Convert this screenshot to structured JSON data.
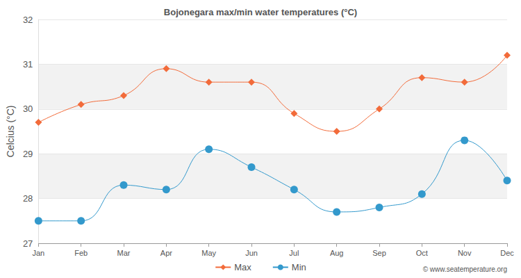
{
  "chart_data": {
    "type": "line",
    "title": "Bojonegara max/min water temperatures (°C)",
    "y_label": "Celcius (°C)",
    "annotation": "© www.seatemperature.org",
    "categories": [
      "Jan",
      "Feb",
      "Mar",
      "Apr",
      "May",
      "Jun",
      "Jul",
      "Aug",
      "Sep",
      "Oct",
      "Nov",
      "Dec"
    ],
    "series": [
      {
        "name": "Max",
        "color": "#f26b3a",
        "marker": "diamond",
        "line_style": "solid",
        "values": [
          29.7,
          30.1,
          30.3,
          30.9,
          30.6,
          30.6,
          29.9,
          29.5,
          30.0,
          30.7,
          30.6,
          31.2
        ]
      },
      {
        "name": "Min",
        "color": "#3399cc",
        "marker": "circle",
        "line_style": "solid",
        "values": [
          27.5,
          27.5,
          28.3,
          28.2,
          29.1,
          28.7,
          28.2,
          27.7,
          27.8,
          28.1,
          29.3,
          28.4
        ]
      }
    ],
    "ylim": [
      27,
      32
    ],
    "yticks": [
      27,
      28,
      29,
      30,
      31,
      32
    ],
    "grid": true,
    "legend": "bottom"
  }
}
